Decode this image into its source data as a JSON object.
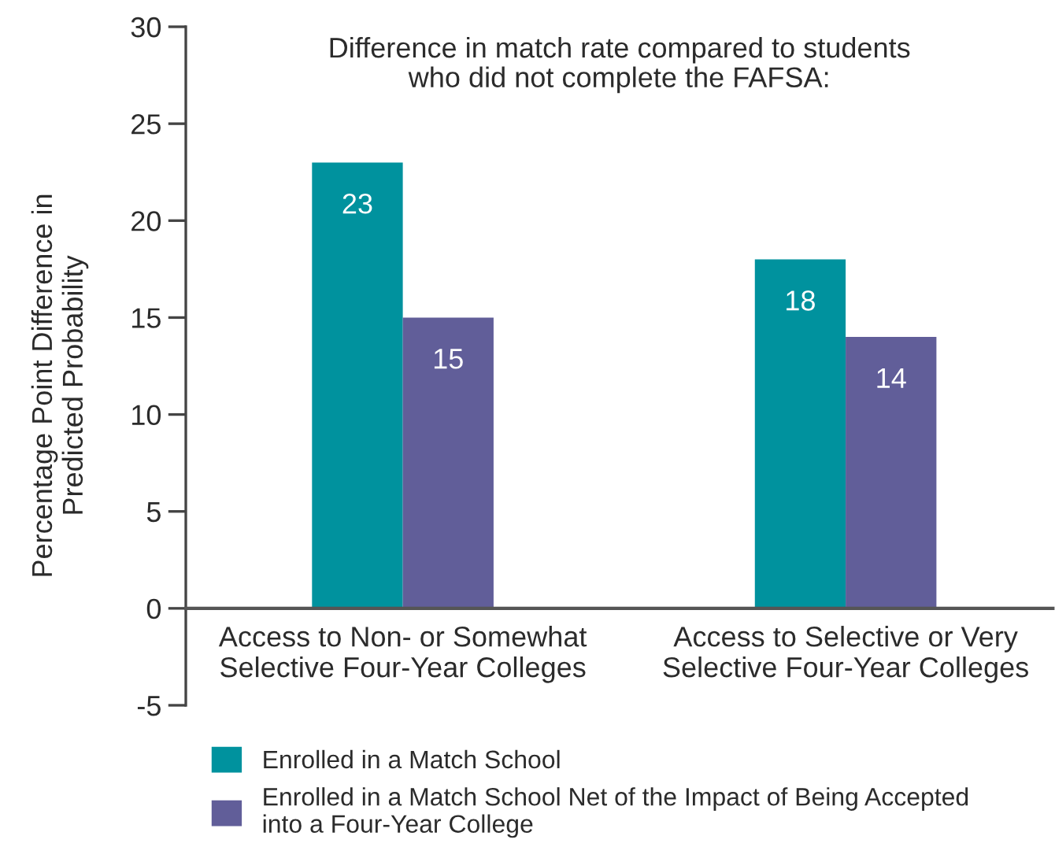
{
  "chart_data": {
    "type": "bar",
    "title": "Difference in match rate compared to students\nwho did not complete the FAFSA:",
    "ylabel": "Percentage Point Difference in\nPredicted Probability",
    "categories": [
      "Access to Non- or Somewhat\nSelective Four-Year Colleges",
      "Access to Selective or Very\nSelective Four-Year Colleges"
    ],
    "series": [
      {
        "name": "Enrolled in a Match School",
        "color": "#00929e",
        "values": [
          23,
          18
        ]
      },
      {
        "name": "Enrolled in a Match School Net of the Impact of Being Accepted\ninto a Four-Year College",
        "color": "#615e99",
        "values": [
          15,
          14
        ]
      }
    ],
    "ylim": [
      -5,
      30
    ],
    "yticks": [
      -5,
      0,
      5,
      10,
      15,
      20,
      25,
      30
    ],
    "data_labels": true,
    "legend": "bottom",
    "grid": false
  }
}
